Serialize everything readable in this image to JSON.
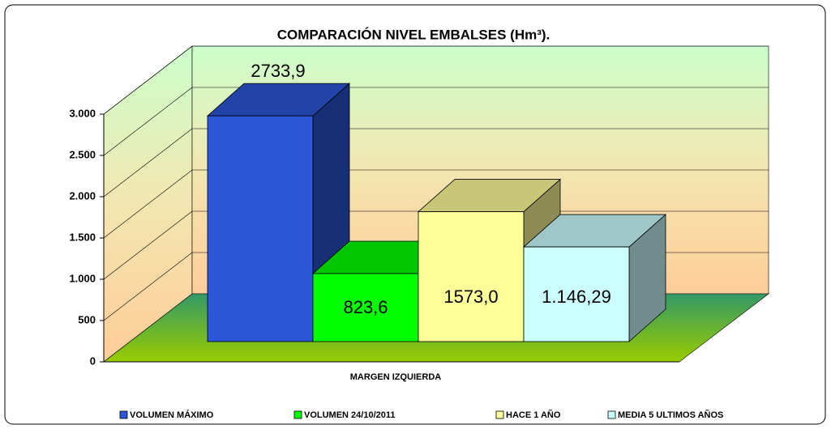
{
  "chart_data": {
    "type": "bar3d",
    "title": "COMPARACIÓN NIVEL EMBALSES (Hm³).",
    "categories": [
      "MARGEN IZQUIERDA"
    ],
    "series": [
      {
        "name": "VOLUMEN MÁXIMO",
        "color": "#2b56d8",
        "values": [
          2733.9
        ],
        "value_labels": [
          "2733,9"
        ]
      },
      {
        "name": "VOLUMEN 24/10/2011",
        "color": "#00ff00",
        "values": [
          823.6
        ],
        "value_labels": [
          "823,6"
        ]
      },
      {
        "name": "HACE 1 AÑO",
        "color": "#ffff99",
        "values": [
          1573.0
        ],
        "value_labels": [
          "1573,0"
        ]
      },
      {
        "name": "MEDIA 5 ULTIMOS AÑOS",
        "color": "#ccffff",
        "values": [
          1146.29
        ],
        "value_labels": [
          "1.146,29"
        ]
      }
    ],
    "ylim": [
      0,
      3000
    ],
    "yticks": [
      0,
      500,
      {
        "value": 1000,
        "label": "1.000"
      },
      {
        "value": 1500,
        "label": "1.500"
      },
      {
        "value": 2000,
        "label": "2.000"
      },
      {
        "value": 2500,
        "label": "2.500"
      },
      {
        "value": 3000,
        "label": "3.000"
      }
    ],
    "grid": true
  }
}
